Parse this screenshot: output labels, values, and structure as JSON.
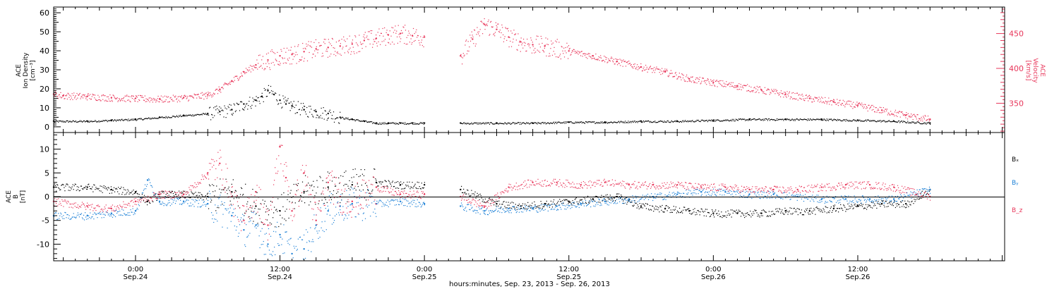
{
  "x_axis": {
    "title": "hours:minutes, Sep. 23, 2013 - Sep. 26, 2013",
    "ticks": [
      {
        "x": 0,
        "label": "0:00",
        "sub": "Sep.24"
      },
      {
        "x": 12,
        "label": "12:00",
        "sub": "Sep.24"
      },
      {
        "x": 24,
        "label": "0:00",
        "sub": "Sep.25"
      },
      {
        "x": 36,
        "label": "12:00",
        "sub": "Sep.25"
      },
      {
        "x": 48,
        "label": "0:00",
        "sub": "Sep.26"
      },
      {
        "x": 60,
        "label": "12:00",
        "sub": "Sep.26"
      }
    ]
  },
  "panel_top": {
    "ylabel_lines": [
      "ACE",
      "Ion Density",
      "[cm⁻³]"
    ],
    "ylabel2_lines": [
      "ACE",
      "Velocity",
      "[km/s]"
    ]
  },
  "panel_bottom": {
    "ylabel_lines": [
      "ACE",
      "B",
      "[nT]"
    ],
    "legend": [
      {
        "name": "Bₓ",
        "color": "#000000"
      },
      {
        "name": "Bᵧ",
        "color": "#1a7fd6"
      },
      {
        "name": "B_z",
        "color": "#e8365a"
      }
    ]
  },
  "colors": {
    "density": "#000000",
    "velocity": "#e8365a",
    "bx": "#000000",
    "by": "#1a7fd6",
    "bz": "#e8365a"
  },
  "chart_data": [
    {
      "type": "scatter",
      "x_unit": "hours from 0:00 Sep. 24, 2013",
      "xlim": [
        -6.8,
        72.2
      ],
      "ylim": [
        -3,
        63
      ],
      "ylim2": [
        308,
        488
      ],
      "yticks": [
        0,
        10,
        20,
        30,
        40,
        50,
        60
      ],
      "yticks2": [
        350,
        400,
        450
      ],
      "gaps": [
        [
          24,
          27
        ]
      ],
      "series": [
        {
          "name": "Ion Density",
          "axis": "left",
          "color": "#000000",
          "x": [
            -6.8,
            -4,
            -2,
            0,
            2,
            4,
            6,
            7,
            8,
            9,
            10,
            10.5,
            11,
            11.5,
            12,
            12.5,
            13,
            14,
            15,
            16,
            17,
            18,
            19,
            20,
            21,
            22,
            23,
            24,
            27,
            30,
            33,
            36,
            39,
            42,
            45,
            48,
            51,
            54,
            57,
            60,
            63,
            66
          ],
          "y": [
            3,
            3,
            3.5,
            4,
            5,
            6,
            7,
            8,
            9,
            12,
            14,
            16,
            19,
            17,
            14,
            12,
            11,
            9,
            8,
            7,
            5,
            4,
            3,
            2,
            2,
            2,
            2,
            2,
            2,
            2,
            2,
            2.5,
            2.5,
            3,
            3,
            3.5,
            4,
            4,
            4,
            3.5,
            3,
            2
          ]
        },
        {
          "name": "Velocity",
          "axis": "right",
          "color": "#e8365a",
          "x": [
            -6.8,
            -6,
            -4,
            -2,
            0,
            2,
            4,
            6,
            7,
            8,
            9,
            10,
            11,
            12,
            13,
            14,
            15,
            16,
            17,
            18,
            19,
            20,
            21,
            22,
            23,
            24,
            27,
            28,
            29,
            30,
            31,
            32,
            33,
            34,
            36,
            38,
            40,
            42,
            44,
            46,
            48,
            50,
            52,
            54,
            56,
            58,
            60,
            62,
            64,
            66
          ],
          "y": [
            363,
            361,
            360,
            358,
            357,
            356,
            358,
            362,
            370,
            382,
            395,
            405,
            412,
            418,
            420,
            424,
            428,
            430,
            432,
            435,
            440,
            443,
            448,
            450,
            447,
            445,
            418,
            442,
            463,
            456,
            445,
            438,
            434,
            432,
            425,
            418,
            410,
            402,
            395,
            385,
            380,
            375,
            369,
            363,
            357,
            352,
            347,
            340,
            333,
            327
          ]
        }
      ]
    },
    {
      "type": "scatter",
      "x_unit": "hours from 0:00 Sep. 24, 2013",
      "xlim": [
        -6.8,
        72.2
      ],
      "ylim": [
        -13.5,
        13.5
      ],
      "yticks": [
        -10,
        -5,
        0,
        5,
        10
      ],
      "gaps": [
        [
          24,
          27
        ]
      ],
      "series": [
        {
          "name": "Bₓ",
          "color": "#000000",
          "x": [
            -6.8,
            -4,
            -2,
            0,
            1,
            2,
            4,
            6,
            8,
            10,
            12,
            14,
            16,
            18,
            20,
            22,
            24,
            27,
            30,
            32,
            34,
            36,
            38,
            40,
            42,
            44,
            46,
            48,
            50,
            52,
            54,
            56,
            58,
            60,
            62,
            64,
            66
          ],
          "y": [
            2,
            2,
            1.5,
            1,
            -1,
            0.5,
            0.5,
            0,
            1,
            -2,
            -3,
            1,
            2,
            2.5,
            3,
            2.5,
            2.5,
            1.5,
            -1.5,
            -2,
            -1.5,
            -1,
            -0.5,
            0,
            -2,
            -2.5,
            -3,
            -3.5,
            -3.5,
            -3.5,
            -3,
            -3,
            -2.5,
            -2,
            -1.5,
            -1.5,
            1.5
          ]
        },
        {
          "name": "Bᵧ",
          "color": "#1a7fd6",
          "x": [
            -6.8,
            -4,
            -2,
            0,
            1,
            2,
            4,
            6,
            8,
            9,
            10,
            11,
            12,
            13,
            14,
            15,
            16,
            17,
            18,
            20,
            22,
            24,
            27,
            29,
            31,
            33,
            35,
            37,
            39,
            41,
            43,
            45,
            47,
            49,
            51,
            53,
            55,
            57,
            59,
            61,
            63,
            66
          ],
          "y": [
            -4,
            -4,
            -3.5,
            -3,
            3.5,
            -1,
            -1,
            -1.5,
            -4,
            -7,
            -6,
            -10,
            -8,
            -12,
            -11,
            -6,
            -3,
            -2,
            -1.5,
            -1.5,
            -1,
            -1.5,
            -2,
            -3,
            -2.5,
            -2.5,
            -2,
            -1.5,
            -1,
            -0.5,
            0,
            0.5,
            1,
            1,
            0.5,
            0.5,
            0,
            -0.5,
            -0.5,
            -0.5,
            -0.5,
            1.5
          ]
        },
        {
          "name": "B_z",
          "color": "#e8365a",
          "x": [
            -6.8,
            -4,
            -2,
            0,
            2,
            4,
            6,
            7,
            8,
            9,
            10,
            11,
            12,
            12.5,
            13,
            14,
            15,
            16,
            17,
            18,
            20,
            22,
            24,
            27,
            29,
            31,
            33,
            35,
            37,
            39,
            41,
            43,
            45,
            47,
            49,
            51,
            53,
            55,
            57,
            59,
            61,
            63,
            66
          ],
          "y": [
            -1,
            -2,
            -2.5,
            -1,
            0.5,
            0.5,
            5,
            7,
            0,
            -5,
            1,
            -6,
            10.5,
            4,
            -3,
            5,
            -5,
            3,
            0,
            -1,
            2,
            0.5,
            0.5,
            0,
            -2,
            2,
            3,
            3,
            2.5,
            3,
            2.5,
            2.5,
            2.5,
            2,
            2,
            1.5,
            1.5,
            1.5,
            2,
            2.5,
            2.5,
            2,
            0
          ]
        }
      ]
    }
  ]
}
